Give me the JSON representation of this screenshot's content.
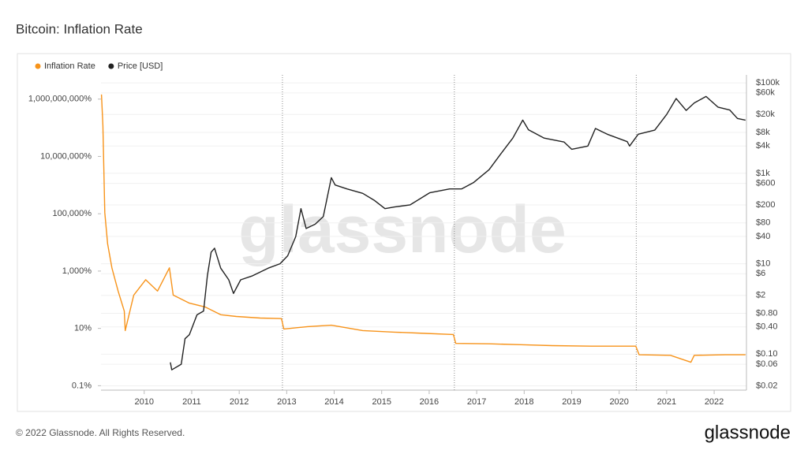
{
  "chart_data": {
    "type": "line",
    "title": "Bitcoin: Inflation Rate",
    "watermark": "glassnode",
    "xlim": [
      2009.09,
      2022.68
    ],
    "xticks": [
      2010,
      2011,
      2012,
      2013,
      2014,
      2015,
      2016,
      2017,
      2018,
      2019,
      2020,
      2021,
      2022
    ],
    "ylim": [
      0.07,
      7000000000
    ],
    "yticks": [
      {
        "value": 0.1,
        "label": "0.1%"
      },
      {
        "value": 10,
        "label": "10%"
      },
      {
        "value": 1000,
        "label": "1,000%"
      },
      {
        "value": 100000,
        "label": "100,000%"
      },
      {
        "value": 10000000,
        "label": "10,000,000%"
      },
      {
        "value": 1000000000,
        "label": "1,000,000,000%"
      }
    ],
    "y2lim": [
      0.016,
      150000
    ],
    "y2ticks": [
      {
        "value": 0.02,
        "label": "$0.02"
      },
      {
        "value": 0.06,
        "label": "$0.06"
      },
      {
        "value": 0.1,
        "label": "$0.10"
      },
      {
        "value": 0.4,
        "label": "$0.40"
      },
      {
        "value": 0.8,
        "label": "$0.80"
      },
      {
        "value": 2,
        "label": "$2"
      },
      {
        "value": 6,
        "label": "$6"
      },
      {
        "value": 10,
        "label": "$10"
      },
      {
        "value": 40,
        "label": "$40"
      },
      {
        "value": 80,
        "label": "$80"
      },
      {
        "value": 200,
        "label": "$200"
      },
      {
        "value": 600,
        "label": "$600"
      },
      {
        "value": 1000,
        "label": "$1k"
      },
      {
        "value": 4000,
        "label": "$4k"
      },
      {
        "value": 8000,
        "label": "$8k"
      },
      {
        "value": 20000,
        "label": "$20k"
      },
      {
        "value": 60000,
        "label": "$60k"
      },
      {
        "value": 100000,
        "label": "$100k"
      }
    ],
    "log_scale": true,
    "grid": true,
    "legend": "top-left",
    "halvings": [
      2012.91,
      2016.53,
      2020.36
    ],
    "series": [
      {
        "name": "Inflation Rate",
        "color": "#f7931a",
        "x": [
          2009.1,
          2009.13,
          2009.17,
          2009.23,
          2009.32,
          2009.45,
          2009.58,
          2009.6,
          2009.78,
          2010.03,
          2010.28,
          2010.53,
          2010.61,
          2010.95,
          2011.28,
          2011.61,
          2011.94,
          2012.44,
          2012.89,
          2012.94,
          2013.44,
          2013.94,
          2014.6,
          2015.27,
          2015.93,
          2016.51,
          2016.56,
          2017.26,
          2017.92,
          2018.59,
          2019.42,
          2020.35,
          2020.42,
          2021.08,
          2021.51,
          2021.58,
          2022.24,
          2022.66
        ],
        "values": [
          1450000000,
          120000000,
          110000,
          8900,
          1300,
          200,
          40,
          8.4,
          145,
          500,
          200,
          1300,
          145,
          76,
          56,
          30,
          26,
          23,
          22,
          9.5,
          11.5,
          12.9,
          8.4,
          7.4,
          6.7,
          6.1,
          3.0,
          2.9,
          2.7,
          2.5,
          2.4,
          2.4,
          1.2,
          1.15,
          0.66,
          1.15,
          1.2,
          1.2
        ]
      },
      {
        "name": "Price [USD]",
        "color": "#222222",
        "axis": "y2",
        "x": [
          2010.55,
          2010.58,
          2010.78,
          2010.86,
          2010.95,
          2011.11,
          2011.25,
          2011.33,
          2011.41,
          2011.48,
          2011.61,
          2011.78,
          2011.88,
          2012.03,
          2012.28,
          2012.61,
          2012.86,
          2013.02,
          2013.19,
          2013.3,
          2013.41,
          2013.6,
          2013.77,
          2013.94,
          2014.02,
          2014.27,
          2014.6,
          2014.85,
          2015.07,
          2015.27,
          2015.6,
          2016.01,
          2016.43,
          2016.68,
          2016.93,
          2017.26,
          2017.51,
          2017.76,
          2017.97,
          2018.09,
          2018.42,
          2018.84,
          2019.0,
          2019.34,
          2019.5,
          2019.75,
          2020.17,
          2020.22,
          2020.4,
          2020.75,
          2021.0,
          2021.2,
          2021.41,
          2021.58,
          2021.83,
          2022.08,
          2022.33,
          2022.49,
          2022.66
        ],
        "values": [
          0.066,
          0.045,
          0.06,
          0.22,
          0.27,
          0.74,
          0.9,
          5.4,
          18,
          22,
          8,
          4.4,
          2.2,
          4.4,
          5.4,
          8,
          10,
          15,
          40,
          165,
          60,
          75,
          110,
          800,
          550,
          450,
          360,
          250,
          165,
          180,
          200,
          370,
          450,
          450,
          620,
          1200,
          2700,
          6000,
          15000,
          9200,
          6000,
          4900,
          3400,
          4000,
          9800,
          7300,
          5000,
          4000,
          7300,
          9000,
          20000,
          45000,
          24500,
          36000,
          50000,
          29000,
          25000,
          16300,
          15000
        ]
      }
    ]
  },
  "footer": {
    "copyright": "© 2022 Glassnode. All Rights Reserved.",
    "logo": "glassnode"
  }
}
